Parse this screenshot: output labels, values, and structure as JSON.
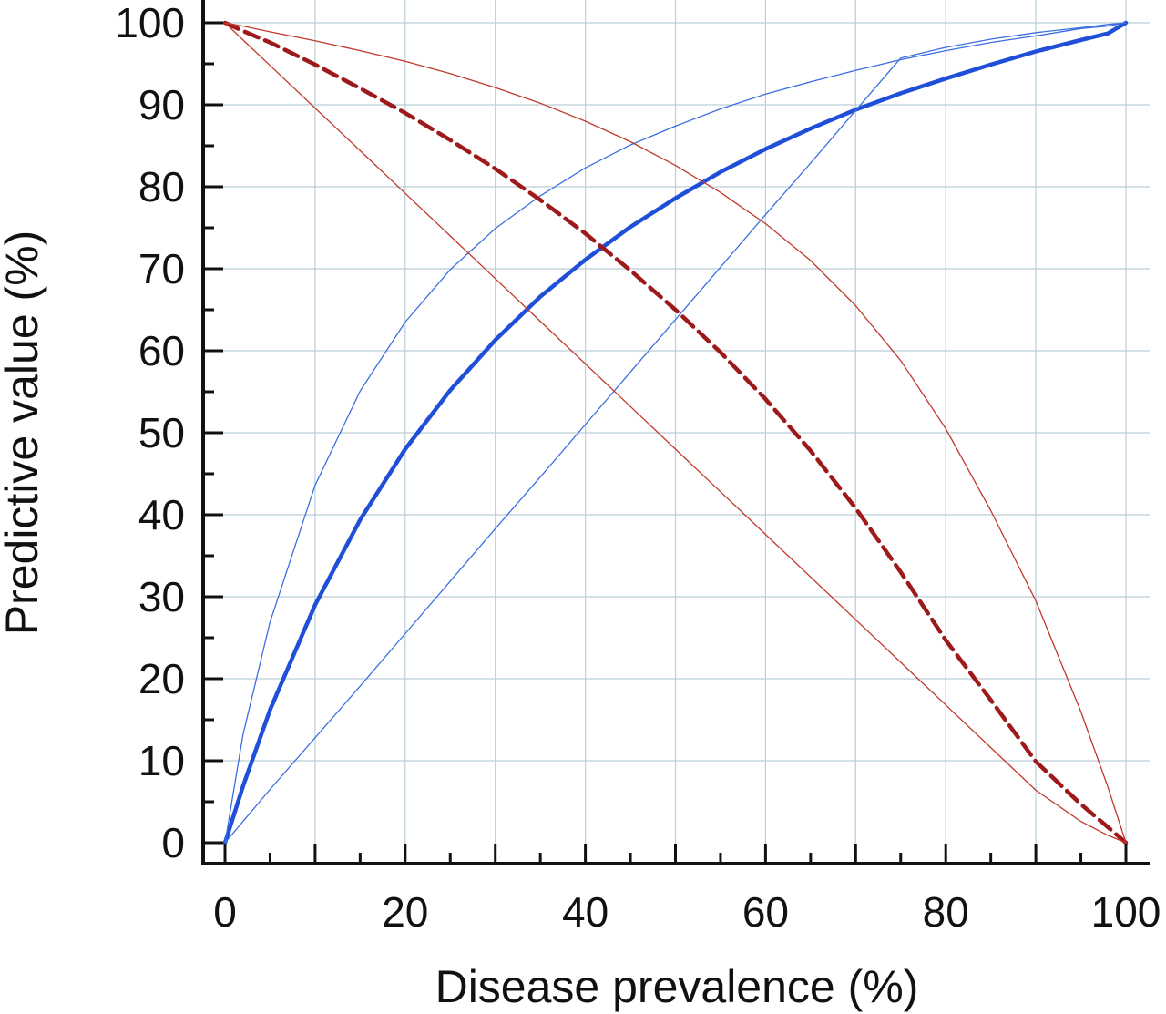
{
  "chart_data": {
    "type": "line",
    "title": "",
    "xlabel": "Disease prevalence (%)",
    "ylabel": "Predictive value (%)",
    "xlim": [
      0,
      100
    ],
    "ylim": [
      0,
      100
    ],
    "xticks": [
      0,
      20,
      40,
      60,
      80,
      100
    ],
    "yticks": [
      0,
      10,
      20,
      30,
      40,
      50,
      60,
      70,
      80,
      90,
      100
    ],
    "x_minor_step": 5,
    "y_minor_step": 5,
    "grid": true,
    "grid_color": "#b9cfd6",
    "x": [
      0,
      2,
      5,
      10,
      15,
      20,
      25,
      30,
      35,
      40,
      45,
      50,
      55,
      60,
      65,
      70,
      75,
      80,
      85,
      90,
      95,
      98,
      100
    ],
    "series": [
      {
        "color": "#1f4fd8",
        "style": "solid",
        "weight": "heavy",
        "values": [
          0,
          6.9,
          16.2,
          29.0,
          39.4,
          48.0,
          55.2,
          61.3,
          66.6,
          71.1,
          75.1,
          78.6,
          81.8,
          84.6,
          87.1,
          89.4,
          91.4,
          93.2,
          94.9,
          96.5,
          97.9,
          98.7,
          100
        ]
      },
      {
        "color": "#3b6fe0",
        "style": "solid",
        "weight": "thin",
        "values": [
          0,
          13.2,
          26.9,
          43.6,
          55.1,
          63.5,
          69.9,
          74.9,
          78.9,
          82.3,
          85.1,
          87.4,
          89.5,
          91.3,
          92.8,
          94.2,
          95.5,
          96.6,
          97.6,
          98.4,
          99.3,
          99.6,
          100
        ]
      },
      {
        "color": "#3b6fe0",
        "style": "solid",
        "weight": "thin",
        "values": [
          0,
          2.6,
          6.5,
          12.8,
          19.1,
          25.5,
          31.9,
          38.3,
          44.6,
          51.0,
          57.4,
          63.8,
          70.2,
          76.6,
          82.9,
          89.3,
          95.7,
          97.0,
          98.0,
          98.8,
          99.4,
          99.8,
          100
        ]
      },
      {
        "color": "#9e1a1a",
        "style": "dashed",
        "weight": "heavy",
        "values": [
          100,
          99.0,
          97.6,
          94.9,
          92.0,
          89.0,
          85.7,
          82.2,
          78.4,
          74.3,
          69.8,
          65.0,
          59.8,
          54.1,
          47.8,
          40.8,
          33.0,
          24.7,
          17.4,
          9.9,
          4.7,
          1.9,
          0
        ]
      },
      {
        "color": "#c0392b",
        "style": "solid",
        "weight": "thin",
        "values": [
          100,
          99.6,
          98.9,
          97.8,
          96.6,
          95.3,
          93.8,
          92.1,
          90.2,
          88.0,
          85.5,
          82.6,
          79.3,
          75.5,
          71.0,
          65.5,
          58.8,
          50.5,
          40.5,
          29.5,
          16.0,
          6.8,
          0
        ]
      },
      {
        "color": "#c0392b",
        "style": "solid",
        "weight": "thin",
        "values": [
          100,
          97.9,
          94.8,
          89.6,
          84.4,
          79.2,
          74.0,
          68.8,
          63.6,
          58.4,
          53.2,
          48.0,
          42.8,
          37.6,
          32.4,
          27.2,
          22.0,
          16.8,
          11.6,
          6.4,
          2.6,
          0.9,
          0
        ]
      }
    ]
  }
}
